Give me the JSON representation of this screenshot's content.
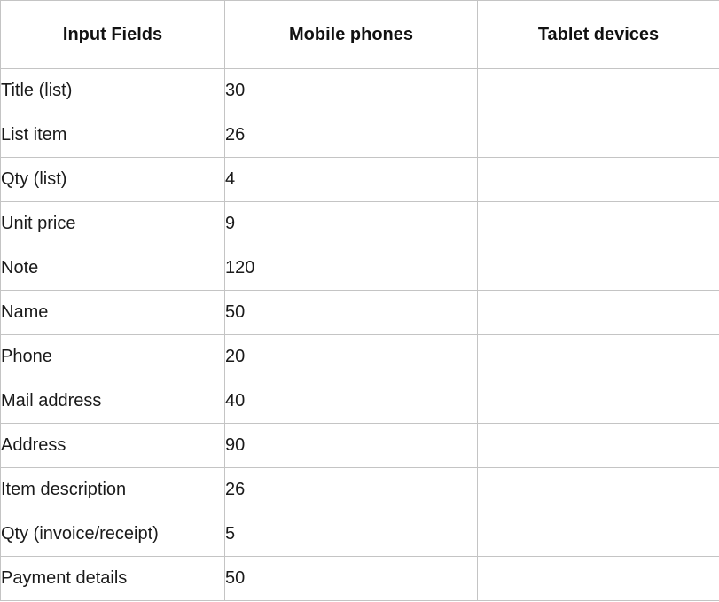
{
  "table": {
    "headers": [
      "Input Fields",
      "Mobile phones",
      "Tablet devices"
    ],
    "rows": [
      {
        "field": "Title (list)",
        "mobile": "30",
        "tablet": ""
      },
      {
        "field": "List item",
        "mobile": "26",
        "tablet": ""
      },
      {
        "field": "Qty (list)",
        "mobile": "4",
        "tablet": ""
      },
      {
        "field": "Unit price",
        "mobile": "9",
        "tablet": ""
      },
      {
        "field": "Note",
        "mobile": "120",
        "tablet": ""
      },
      {
        "field": "Name",
        "mobile": "50",
        "tablet": ""
      },
      {
        "field": "Phone",
        "mobile": "20",
        "tablet": ""
      },
      {
        "field": "Mail address",
        "mobile": "40",
        "tablet": ""
      },
      {
        "field": "Address",
        "mobile": "90",
        "tablet": ""
      },
      {
        "field": "Item description",
        "mobile": "26",
        "tablet": ""
      },
      {
        "field": "Qty (invoice/receipt)",
        "mobile": "5",
        "tablet": ""
      },
      {
        "field": "Payment details",
        "mobile": "50",
        "tablet": ""
      }
    ]
  }
}
